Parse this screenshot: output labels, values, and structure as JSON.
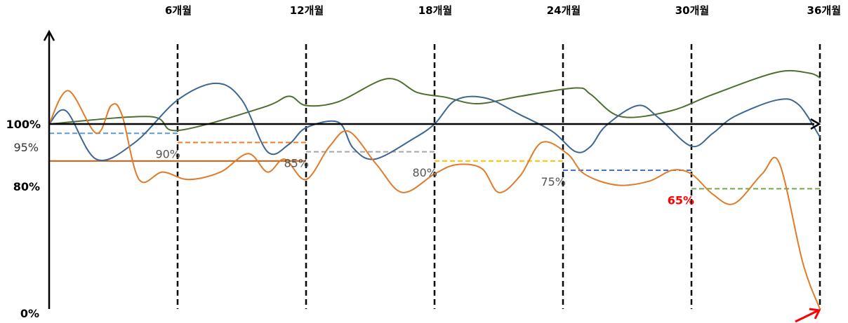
{
  "chart_data": {
    "type": "line",
    "x_ticks": [
      {
        "value": 6,
        "label": "6개월"
      },
      {
        "value": 12,
        "label": "12개월"
      },
      {
        "value": 18,
        "label": "18개월"
      },
      {
        "value": 24,
        "label": "24개월"
      },
      {
        "value": 30,
        "label": "30개월"
      },
      {
        "value": 36,
        "label": "36개월"
      }
    ],
    "y_ticks": [
      {
        "value": 100,
        "label": "100%"
      },
      {
        "value": 95,
        "label": "95%"
      },
      {
        "value": 80,
        "label": "80%"
      },
      {
        "value": 0,
        "label": "0%"
      }
    ],
    "xlim": [
      0,
      36
    ],
    "ylim": [
      0,
      150
    ],
    "thresholds": [
      {
        "label": "95%",
        "value": 95,
        "from": 0,
        "to": 6,
        "color": "#5b9bd5",
        "style": "dashed",
        "show_label": false
      },
      {
        "label": "80%",
        "value": 80,
        "from": 0,
        "to": 12,
        "color": "#c55a11",
        "style": "solid",
        "show_label": false
      },
      {
        "label": "90%",
        "value": 90,
        "from": 6,
        "to": 12,
        "color": "#ed7d31",
        "style": "dashed",
        "show_label": true,
        "label_color": "#555555"
      },
      {
        "label": "85%",
        "value": 85,
        "from": 12,
        "to": 18,
        "color": "#a5a5a5",
        "style": "dashed",
        "show_label": true,
        "label_color": "#555555"
      },
      {
        "label": "80%",
        "value": 80,
        "from": 18,
        "to": 24,
        "color": "#ffc000",
        "style": "dashed",
        "show_label": true,
        "label_color": "#555555"
      },
      {
        "label": "75%",
        "value": 75,
        "from": 24,
        "to": 30,
        "color": "#4472c4",
        "style": "dashed",
        "show_label": true,
        "label_color": "#555555"
      },
      {
        "label": "65%",
        "value": 65,
        "from": 30,
        "to": 36,
        "color": "#70ad47",
        "style": "dashed",
        "show_label": true,
        "label_color": "#ff0000"
      }
    ],
    "series": [
      {
        "color": "#4e6f2f",
        "points": [
          [
            0,
            100
          ],
          [
            4.7,
            104
          ],
          [
            6,
            96.5
          ],
          [
            10,
            109
          ],
          [
            11.2,
            115
          ],
          [
            12,
            110
          ],
          [
            13.5,
            112
          ],
          [
            15.8,
            124.5
          ],
          [
            17.2,
            117
          ],
          [
            18.5,
            114.5
          ],
          [
            20,
            111
          ],
          [
            22,
            115
          ],
          [
            24.6,
            119.5
          ],
          [
            25.3,
            116
          ],
          [
            26.7,
            104
          ],
          [
            29,
            107
          ],
          [
            31,
            116
          ],
          [
            34,
            128
          ],
          [
            35.5,
            127.5
          ],
          [
            36,
            125
          ]
        ]
      },
      {
        "color": "#3d6694",
        "points": [
          [
            0,
            100
          ],
          [
            0.8,
            107
          ],
          [
            2.2,
            81
          ],
          [
            4,
            90
          ],
          [
            6,
            113
          ],
          [
            7.8,
            122
          ],
          [
            9,
            113
          ],
          [
            10.2,
            85
          ],
          [
            11.2,
            89
          ],
          [
            12,
            98
          ],
          [
            13.5,
            101
          ],
          [
            14.2,
            87
          ],
          [
            15.2,
            81
          ],
          [
            17,
            92
          ],
          [
            18,
            100
          ],
          [
            19,
            113
          ],
          [
            20.4,
            114
          ],
          [
            22,
            105
          ],
          [
            23.5,
            96
          ],
          [
            24.6,
            85
          ],
          [
            25.3,
            88
          ],
          [
            26,
            99
          ],
          [
            27.5,
            110
          ],
          [
            28.5,
            103
          ],
          [
            30,
            88
          ],
          [
            31,
            95
          ],
          [
            32,
            104
          ],
          [
            34,
            113
          ],
          [
            35,
            110.5
          ],
          [
            36,
            93
          ]
        ]
      },
      {
        "color": "#e07b2a",
        "points": [
          [
            0,
            100
          ],
          [
            0.9,
            118
          ],
          [
            2.2,
            95
          ],
          [
            2.9,
            110
          ],
          [
            3.4,
            105
          ],
          [
            4.2,
            70
          ],
          [
            5.3,
            74
          ],
          [
            6.5,
            70
          ],
          [
            8,
            74
          ],
          [
            9.3,
            84
          ],
          [
            10.2,
            74
          ],
          [
            11,
            81
          ],
          [
            12,
            70
          ],
          [
            13.1,
            88
          ],
          [
            14,
            96
          ],
          [
            15.3,
            78
          ],
          [
            16.5,
            63
          ],
          [
            18,
            73
          ],
          [
            19,
            78
          ],
          [
            20.2,
            76
          ],
          [
            21,
            63
          ],
          [
            22,
            72
          ],
          [
            23,
            90
          ],
          [
            24.2,
            84
          ],
          [
            25,
            73
          ],
          [
            26.5,
            67
          ],
          [
            28,
            69
          ],
          [
            29.1,
            75
          ],
          [
            30,
            73
          ],
          [
            31,
            62
          ],
          [
            32,
            57
          ],
          [
            33.3,
            73
          ],
          [
            34.1,
            79
          ],
          [
            35.2,
            25
          ],
          [
            36,
            0
          ]
        ]
      }
    ]
  }
}
